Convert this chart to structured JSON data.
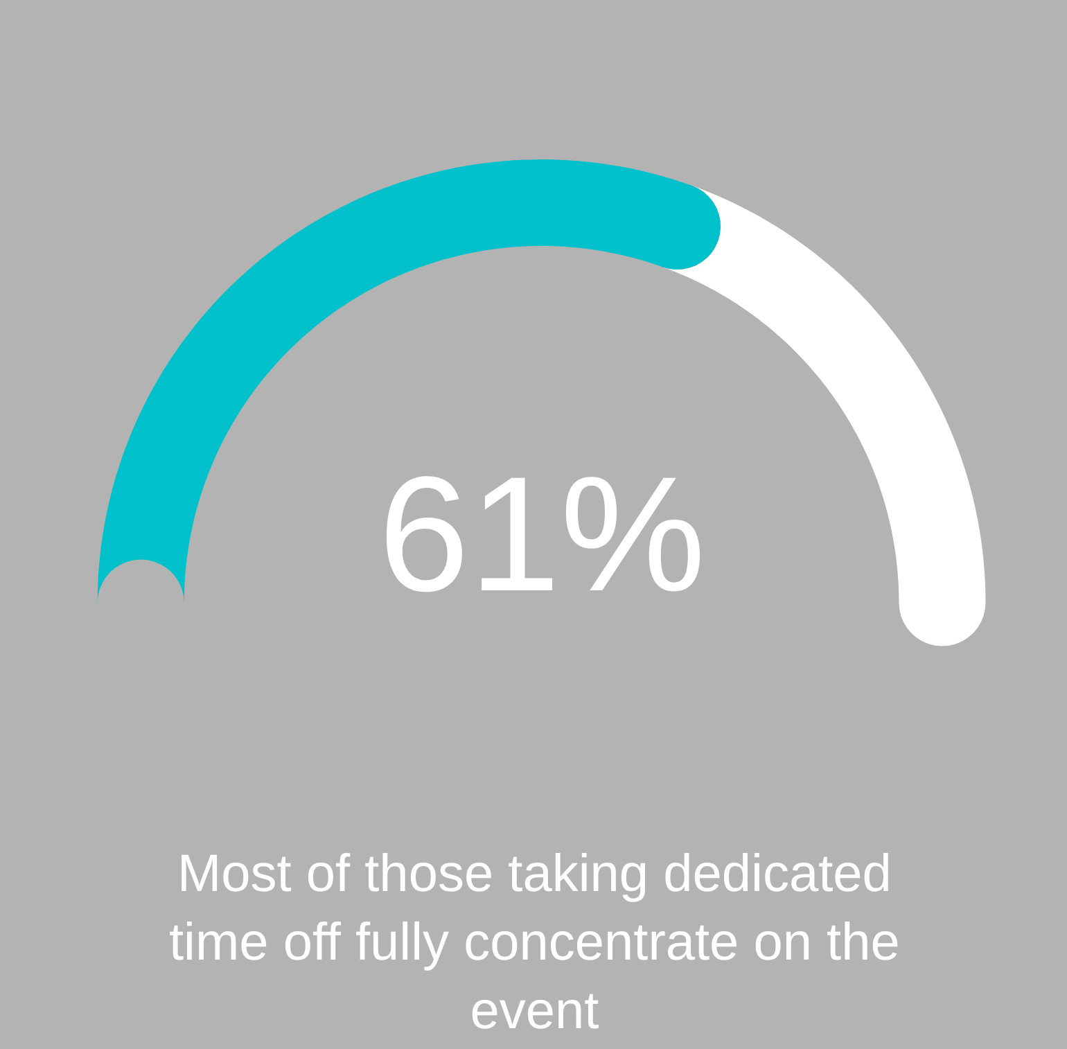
{
  "chart_data": {
    "type": "donut",
    "categories": [
      null,
      null
    ],
    "values": [
      61,
      39
    ],
    "colors": [
      "#00c1cb",
      "#ffffff"
    ],
    "value_labels": [
      "61%",
      null
    ],
    "annotations": [
      "Most of those taking dedicated time off fully concentrate on the event"
    ]
  }
}
